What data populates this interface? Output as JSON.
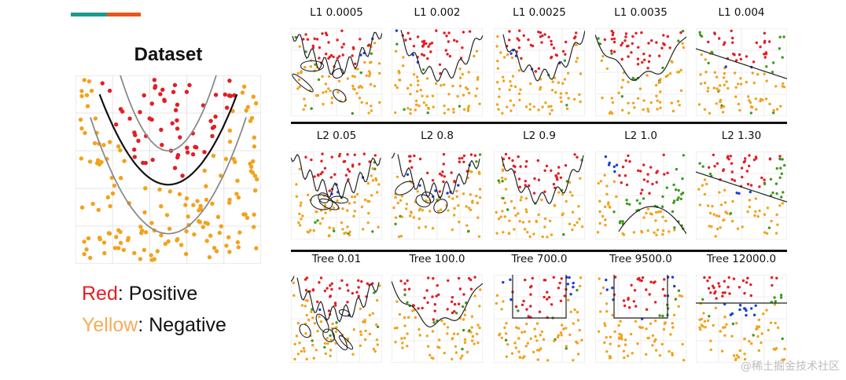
{
  "dataset": {
    "title": "Dataset",
    "legend": [
      {
        "keyword": "Red",
        "rest": ": Positive"
      },
      {
        "keyword": "Yellow",
        "rest": ": Negative"
      }
    ]
  },
  "colors": {
    "positive": "#e31e24",
    "negative": "#f2a21c",
    "blue": "#1a3fd6",
    "green": "#3c9a1e",
    "accent_teal": "#1a9c8c",
    "accent_orange": "#e8561c"
  },
  "watermark": "@稀土掘金技术社区",
  "chart_data": [
    {
      "type": "scatter",
      "title": "Dataset",
      "xlim": [
        0,
        10
      ],
      "ylim": [
        0,
        10
      ],
      "grid": true,
      "decision_boundary": "y = 0.35*(x-5)^2 + 4.2",
      "margin_curves": [
        "y = 0.35*(x-5)^2 + 1.6",
        "y = 0.6*(x-5)^2 + 6"
      ],
      "classes": [
        "Positive (red)",
        "Negative (yellow)"
      ]
    },
    {
      "type": "scatter",
      "row": "L1",
      "panels": [
        {
          "title": "L1 0.0005",
          "boundary": "overfit-jagged"
        },
        {
          "title": "L1 0.002",
          "boundary": "jagged-u"
        },
        {
          "title": "L1 0.0025",
          "boundary": "jagged-u"
        },
        {
          "title": "L1 0.0035",
          "boundary": "wavy-u"
        },
        {
          "title": "L1 0.004",
          "boundary": "linear"
        }
      ]
    },
    {
      "type": "scatter",
      "row": "L2",
      "panels": [
        {
          "title": "L2 0.05",
          "boundary": "overfit-blobs"
        },
        {
          "title": "L2 0.8",
          "boundary": "overfit-blobs"
        },
        {
          "title": "L2 0.9",
          "boundary": "jagged-u"
        },
        {
          "title": "L2 1.0",
          "boundary": "smooth-u"
        },
        {
          "title": "L2 1.30",
          "boundary": "linear"
        }
      ]
    },
    {
      "type": "scatter",
      "row": "Tree",
      "panels": [
        {
          "title": "Tree 0.01",
          "boundary": "overfit-islands"
        },
        {
          "title": "Tree 100.0",
          "boundary": "wavy-u"
        },
        {
          "title": "Tree 700.0",
          "boundary": "box"
        },
        {
          "title": "Tree 9500.0",
          "boundary": "box"
        },
        {
          "title": "Tree 12000.0",
          "boundary": "horizontal"
        }
      ]
    }
  ]
}
